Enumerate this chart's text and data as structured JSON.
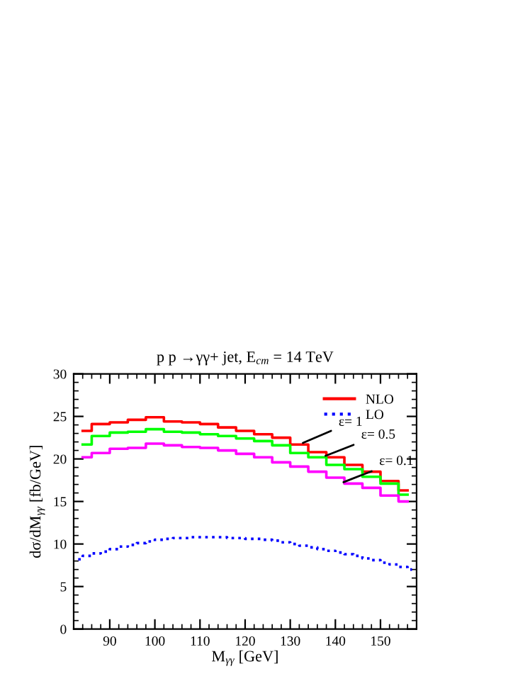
{
  "chart_data": {
    "type": "step",
    "title": "p p →γγ+ jet, E$_{cm}$ = 14 TeV",
    "xlabel": "M$_{γγ}$ [GeV]",
    "ylabel": "dσ/dM$_{γγ}$ [fb/GeV]",
    "series": [
      {
        "name": "NLO",
        "color": "#ff0000",
        "line_style": "solid",
        "x": [
          84,
          88,
          92,
          96,
          100,
          104,
          108,
          112,
          116,
          120,
          124,
          128,
          132,
          136,
          140,
          144,
          148,
          152,
          156
        ],
        "values": [
          23.3,
          24.1,
          24.3,
          24.6,
          24.9,
          24.4,
          24.3,
          24.1,
          23.7,
          23.3,
          22.9,
          22.5,
          21.7,
          20.8,
          20.2,
          19.3,
          18.5,
          17.4,
          16.3
        ]
      },
      {
        "color": "#00ff00",
        "line_style": "solid",
        "x": [
          84,
          88,
          92,
          96,
          100,
          104,
          108,
          112,
          116,
          120,
          124,
          128,
          132,
          136,
          140,
          144,
          148,
          152,
          156
        ],
        "values": [
          21.7,
          22.7,
          23.1,
          23.2,
          23.5,
          23.2,
          23.1,
          22.9,
          22.7,
          22.4,
          22.1,
          21.6,
          20.7,
          20.2,
          19.3,
          18.8,
          17.9,
          17.1,
          15.8
        ]
      },
      {
        "color": "#ff00ff",
        "line_style": "solid",
        "x": [
          84,
          88,
          92,
          96,
          100,
          104,
          108,
          112,
          116,
          120,
          124,
          128,
          132,
          136,
          140,
          144,
          148,
          152,
          156
        ],
        "values": [
          20.2,
          20.7,
          21.2,
          21.3,
          21.8,
          21.6,
          21.4,
          21.3,
          21.0,
          20.6,
          20.2,
          19.6,
          19.1,
          18.5,
          17.8,
          17.1,
          16.6,
          15.7,
          15.0
        ]
      },
      {
        "name": "LO",
        "color": "#0000ff",
        "line_style": "dotted",
        "x": [
          83,
          85,
          87,
          89,
          91,
          93,
          95,
          97,
          99,
          101,
          103,
          105,
          107,
          109,
          111,
          113,
          115,
          117,
          119,
          121,
          123,
          125,
          127,
          129,
          131,
          133,
          135,
          137,
          139,
          141,
          143,
          145,
          147,
          149,
          151,
          153,
          155,
          157
        ],
        "values": [
          8.2,
          8.6,
          8.9,
          9.1,
          9.4,
          9.7,
          9.9,
          10.1,
          10.3,
          10.5,
          10.6,
          10.7,
          10.7,
          10.8,
          10.8,
          10.8,
          10.8,
          10.7,
          10.7,
          10.6,
          10.6,
          10.5,
          10.4,
          10.2,
          10.0,
          9.8,
          9.6,
          9.4,
          9.2,
          9.0,
          8.8,
          8.6,
          8.3,
          8.1,
          7.8,
          7.6,
          7.3,
          7.0
        ]
      }
    ],
    "annotations": [
      {
        "text": "ε= 1",
        "x": 132,
        "y": 21.7
      },
      {
        "text": "ε= 0.5",
        "x": 137,
        "y": 20.2
      },
      {
        "text": "ε= 0.1",
        "x": 141,
        "y": 17.1
      }
    ],
    "xlim": [
      82,
      158
    ],
    "xticks": [
      90,
      100,
      110,
      120,
      130,
      140,
      150
    ],
    "ylim": [
      0,
      30
    ],
    "yticks": [
      0,
      5,
      10,
      15,
      20,
      25,
      30
    ],
    "grid": false,
    "legend": "top right"
  }
}
